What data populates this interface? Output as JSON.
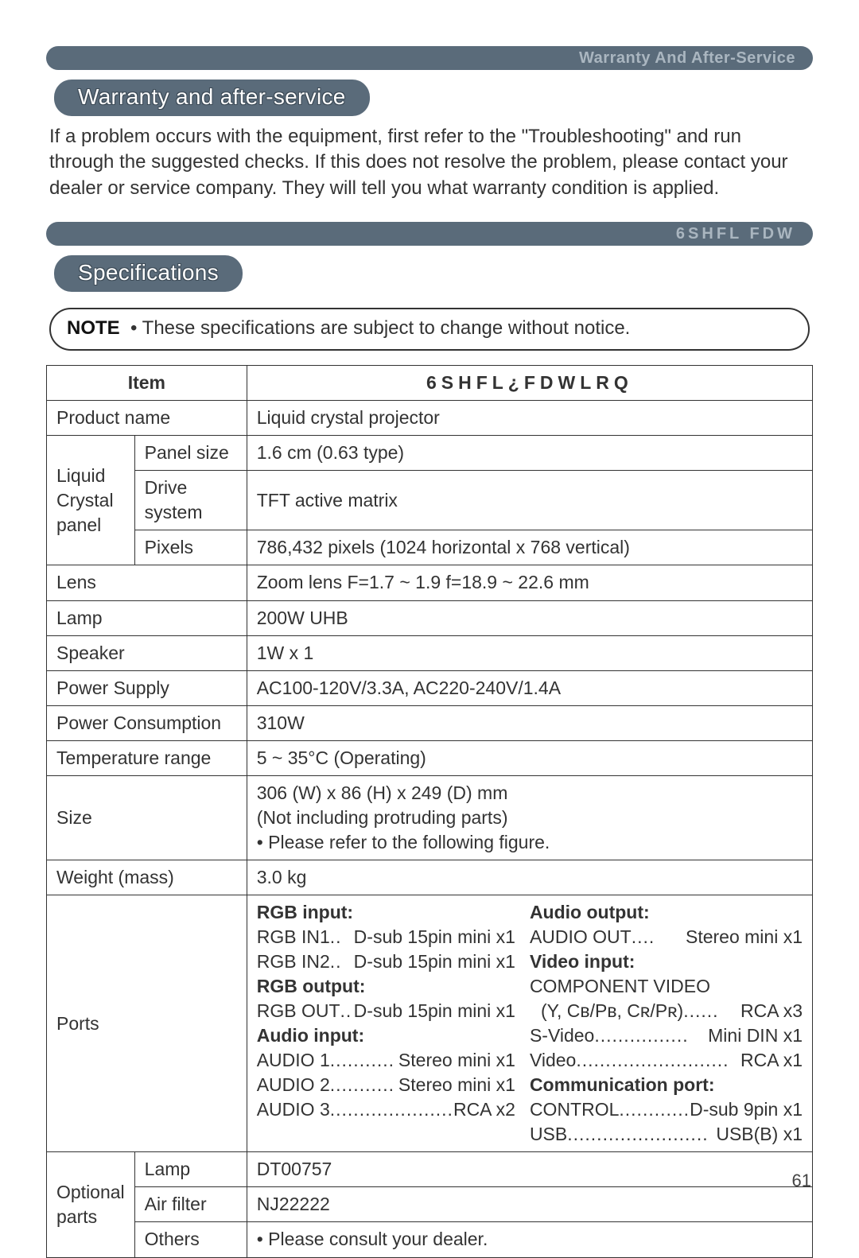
{
  "banner1": {
    "text": "Warranty And After-Service"
  },
  "heading1": "Warranty and after-service",
  "paragraph1": "If a problem occurs with the equipment, first refer to the \"Troubleshooting\" and run through the suggested checks. If this does not resolve the problem, please contact your dealer or service company. They will tell you what warranty condition is applied.",
  "banner2": {
    "text": "6SHFL FDW"
  },
  "heading2": "Specifications",
  "note": {
    "label": "NOTE",
    "bullet": "•",
    "text": "These specifications are subject to change without notice."
  },
  "table": {
    "header": {
      "item": "Item",
      "spec": "6SHFL¿FDWLRQ"
    },
    "rows": {
      "product_name": {
        "label": "Product name",
        "value": "Liquid crystal projector"
      },
      "lcp": {
        "group": "Liquid Crystal panel",
        "panel_size": {
          "label": "Panel size",
          "value": "1.6 cm (0.63 type)"
        },
        "drive_system": {
          "label": "Drive system",
          "value": "TFT active matrix"
        },
        "pixels": {
          "label": "Pixels",
          "value": "786,432 pixels (1024 horizontal x 768 vertical)"
        }
      },
      "lens": {
        "label": "Lens",
        "value": "Zoom lens F=1.7 ~ 1.9 f=18.9 ~ 22.6 mm"
      },
      "lamp": {
        "label": "Lamp",
        "value": "200W UHB"
      },
      "speaker": {
        "label": "Speaker",
        "value": "1W x 1"
      },
      "power_supply": {
        "label": "Power Supply",
        "value": "AC100-120V/3.3A, AC220-240V/1.4A"
      },
      "power_consumption": {
        "label": "Power Consumption",
        "value": "310W"
      },
      "temp_range": {
        "label": "Temperature range",
        "value": "5 ~ 35°C (Operating)"
      },
      "size": {
        "label": "Size",
        "l1": "306 (W) x 86 (H) x 249 (D) mm",
        "l2": "(Not including protruding parts)",
        "l3": "• Please refer to the following figure."
      },
      "weight": {
        "label": "Weight (mass)",
        "value": "3.0 kg"
      },
      "ports": {
        "label": "Ports",
        "left": {
          "h1": "RGB input:",
          "r1l": "RGB IN1",
          "r1r": "D-sub 15pin mini x1",
          "r2l": "RGB IN2",
          "r2r": "D-sub 15pin mini x1",
          "h2": "RGB output:",
          "r3l": "RGB OUT",
          "r3r": "D-sub 15pin mini x1",
          "h3": "Audio input:",
          "r4l": "AUDIO 1",
          "r4r": "Stereo mini x1",
          "r5l": "AUDIO 2",
          "r5r": "Stereo mini x1",
          "r6l": "AUDIO 3",
          "r6r": "RCA x2"
        },
        "right": {
          "h1": "Audio output:",
          "r1l": "AUDIO OUT",
          "r1r": "Stereo mini x1",
          "h2": "Video input:",
          "r2": "COMPONENT VIDEO",
          "r3l": "(Y, Cʙ/Pʙ, Cʀ/Pʀ)",
          "r3r": "RCA x3",
          "r4l": "S-Video",
          "r4r": "Mini DIN x1",
          "r5l": "Video",
          "r5r": "RCA x1",
          "h3": "Communication port:",
          "r6l": "CONTROL",
          "r6r": "D-sub 9pin x1",
          "r7l": "USB",
          "r7r": "USB(B) x1"
        }
      },
      "optional": {
        "group": "Optional parts",
        "lamp": {
          "label": "Lamp",
          "value": "DT00757"
        },
        "air_filter": {
          "label": "Air filter",
          "value": "NJ22222"
        },
        "others": {
          "label": "Others",
          "value": "• Please consult your dealer."
        }
      }
    }
  },
  "page_number": "61",
  "style": {
    "banner_bg": "#5a6b7a",
    "banner_text": "#aab6c0",
    "pill_text": "#ffffff",
    "body_text": "#333333",
    "border": "#333333"
  }
}
